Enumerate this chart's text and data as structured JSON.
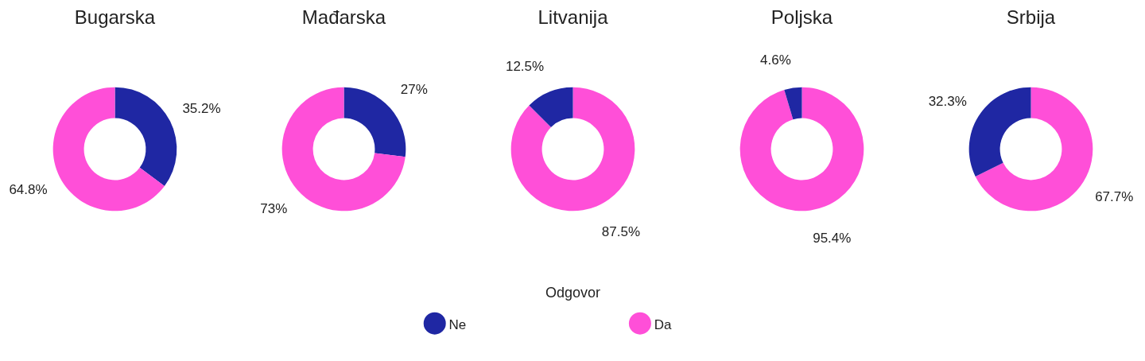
{
  "chart_data": [
    {
      "type": "donut",
      "title": "Bugarska",
      "categories": [
        "Ne",
        "Da"
      ],
      "values": [
        35.2,
        64.8
      ],
      "colors": [
        "#1f27a3",
        "#ff4fd8"
      ],
      "value_labels": [
        "35.2%",
        "64.8%"
      ],
      "legend": "bottom",
      "legend_title": "Odgovor"
    },
    {
      "type": "donut",
      "title": "Mađarska",
      "categories": [
        null,
        null
      ],
      "values": [
        27,
        73
      ],
      "colors": [
        "#1f27a3",
        "#ff4fd8"
      ],
      "value_labels": [
        "27%",
        "73%"
      ]
    },
    {
      "type": "donut",
      "title": "Litvanija",
      "categories": [
        null,
        null
      ],
      "values": [
        87.5,
        12.5
      ],
      "colors": [
        "#ff4fd8",
        "#1f27a3"
      ],
      "value_labels": [
        "87.5%",
        "12.5%"
      ]
    },
    {
      "type": "donut",
      "title": "Poljska",
      "categories": [
        null,
        null
      ],
      "values": [
        95.4,
        4.6
      ],
      "colors": [
        "#ff4fd8",
        "#1f27a3"
      ],
      "value_labels": [
        "95.4%",
        "4.6%"
      ]
    },
    {
      "type": "donut",
      "title": "Srbija",
      "categories": [
        null,
        null
      ],
      "values": [
        67.7,
        32.3
      ],
      "colors": [
        "#ff4fd8",
        "#1f27a3"
      ],
      "value_labels": [
        "67.7%",
        "32.3%"
      ]
    }
  ]
}
